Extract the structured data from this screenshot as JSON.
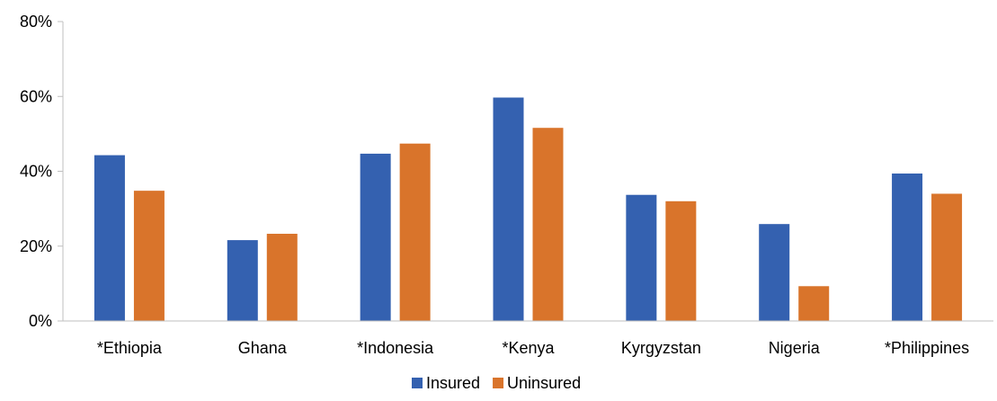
{
  "chart_data": {
    "type": "bar",
    "title": "",
    "xlabel": "",
    "ylabel": "",
    "categories": [
      "*Ethiopia",
      "Ghana",
      "*Indonesia",
      "*Kenya",
      "Kyrgyzstan",
      "Nigeria",
      "*Philippines"
    ],
    "series": [
      {
        "name": "Insured",
        "color": "#3461b0",
        "values": [
          44.3,
          21.6,
          44.7,
          59.7,
          33.7,
          25.9,
          39.4
        ]
      },
      {
        "name": "Uninsured",
        "color": "#d9742b",
        "values": [
          34.8,
          23.3,
          47.4,
          51.6,
          32.0,
          9.3,
          34.0
        ]
      }
    ],
    "ylim": [
      0,
      80
    ],
    "yticks": [
      0,
      20,
      40,
      60,
      80
    ],
    "ytick_labels": [
      "0%",
      "20%",
      "40%",
      "60%",
      "80%"
    ],
    "grid": false,
    "legend_position": "bottom"
  }
}
